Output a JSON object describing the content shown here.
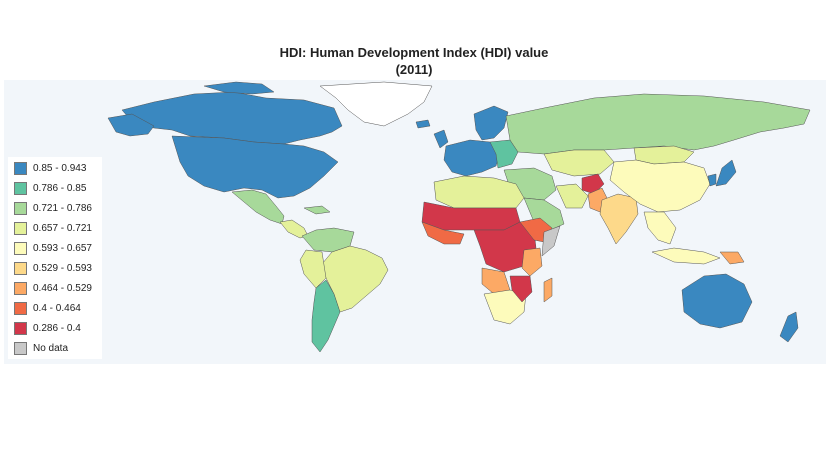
{
  "title_line1": "HDI: Human Development Index (HDI) value",
  "title_line2": "(2011)",
  "legend": [
    {
      "label": "0.85 - 0.943",
      "color": "#3a88c0"
    },
    {
      "label": "0.786 - 0.85",
      "color": "#5fc3a0"
    },
    {
      "label": "0.721 - 0.786",
      "color": "#a7d99a"
    },
    {
      "label": "0.657 - 0.721",
      "color": "#e4f19a"
    },
    {
      "label": "0.593 - 0.657",
      "color": "#fdfbbb"
    },
    {
      "label": "0.529 - 0.593",
      "color": "#fdd98a"
    },
    {
      "label": "0.464 - 0.529",
      "color": "#fca965"
    },
    {
      "label": "0.4 - 0.464",
      "color": "#f06a45"
    },
    {
      "label": "0.286 - 0.4",
      "color": "#d2374a"
    },
    {
      "label": "No data",
      "color": "#c8c8c8"
    }
  ],
  "colors": {
    "ocean": "#f2f6fa",
    "greenland": "#ffffff"
  }
}
